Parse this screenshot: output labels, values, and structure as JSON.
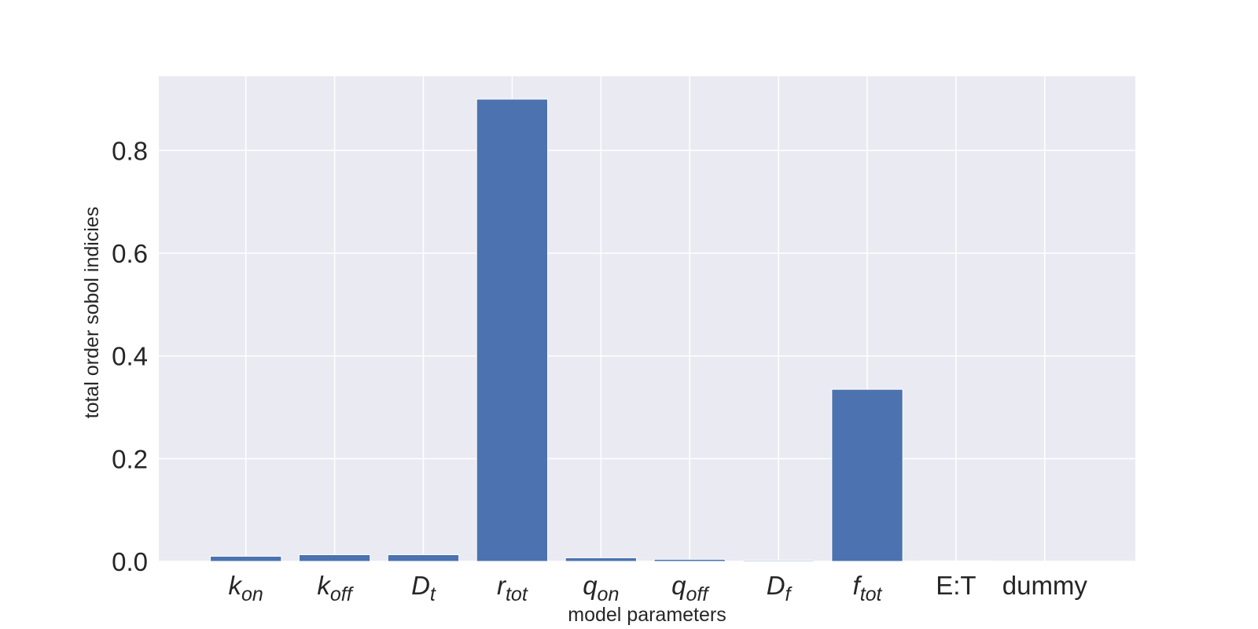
{
  "chart_data": {
    "type": "bar",
    "categories": [
      {
        "base": "k",
        "sub": "on",
        "italic_sub": true
      },
      {
        "base": "k",
        "sub": "off",
        "italic_sub": true
      },
      {
        "base": "D",
        "sub": "t",
        "italic_sub": true
      },
      {
        "base": "r",
        "sub": "tot",
        "italic_sub": true
      },
      {
        "base": "q",
        "sub": "on",
        "italic_sub": true
      },
      {
        "base": "q",
        "sub": "off",
        "italic_sub": true
      },
      {
        "base": "D",
        "sub": "f",
        "italic_sub": true
      },
      {
        "base": "f",
        "sub": "tot",
        "italic_sub": true
      },
      {
        "base": "E:T",
        "sub": "",
        "italic_sub": false
      },
      {
        "base": "dummy",
        "sub": "",
        "italic_sub": false
      }
    ],
    "values": [
      0.01,
      0.013,
      0.013,
      0.9,
      0.007,
      0.004,
      0.002,
      0.335,
      0.001,
      0.0
    ],
    "title": "",
    "xlabel": "model parameters",
    "ylabel": "total order sobol indicies",
    "ylim": [
      0.0,
      0.9445
    ],
    "yticks": [
      0.0,
      0.2,
      0.4,
      0.6,
      0.8
    ],
    "ytick_labels": [
      "0.0",
      "0.2",
      "0.4",
      "0.6",
      "0.8"
    ],
    "grid": true,
    "colors": {
      "bar": "#4c72b0",
      "plot_bg": "#eaeaf2",
      "grid": "#ffffff",
      "text": "#262626"
    }
  }
}
